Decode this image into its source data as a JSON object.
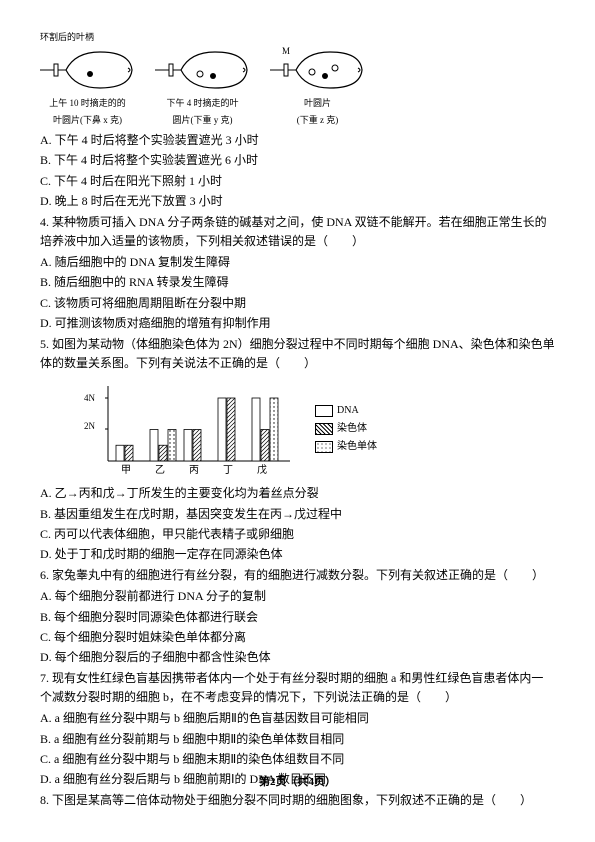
{
  "fish": {
    "topLabel": "环割后的叶柄",
    "items": [
      {
        "label1": "上午 10 时摘走的的",
        "label2": "叶圆片(下鼻 x 克)"
      },
      {
        "label1": "下午 4 时摘走的叶",
        "label2": "圆片(下重 y 克)"
      },
      {
        "label1": "叶圆片",
        "label2": "(下重 z 克)"
      }
    ]
  },
  "q3options": {
    "A": "A. 下午 4 时后将整个实验装置遮光 3 小时",
    "B": "B. 下午 4 时后将整个实验装置遮光 6 小时",
    "C": "C. 下午 4 时后在阳光下照射 1 小时",
    "D": "D. 晚上 8 时后在无光下放置 3 小时"
  },
  "q4": {
    "stem": "4. 某种物质可插入 DNA 分子两条链的碱基对之间，使 DNA 双链不能解开。若在细胞正常生长的培养液中加入适量的该物质，下列相关叙述错误的是（　　）",
    "A": "A. 随后细胞中的 DNA 复制发生障碍",
    "B": "B. 随后细胞中的 RNA 转录发生障碍",
    "C": "C. 该物质可将细胞周期阻断在分裂中期",
    "D": "D. 可推测该物质对癌细胞的增殖有抑制作用"
  },
  "q5": {
    "stem": "5. 如图为某动物（体细胞染色体为 2N）细胞分裂过程中不同时期每个细胞 DNA、染色体和染色单体的数量关系图。下列有关说法不正确的是（　　）",
    "A": "A. 乙→丙和戊→丁所发生的主要变化均为着丝点分裂",
    "B": "B. 基因重组发生在戊时期，基因突变发生在丙→戊过程中",
    "C": "C. 丙可以代表体细胞，甲只能代表精子或卵细胞",
    "D": "D. 处于丁和戊时期的细胞一定存在同源染色体"
  },
  "chart": {
    "yMax": 4,
    "yTicks": [
      "4N",
      "2N"
    ],
    "categories": [
      "甲",
      "乙",
      "丙",
      "丁",
      "戊"
    ],
    "series": [
      {
        "name": "DNA",
        "fill": "none",
        "pattern": "none"
      },
      {
        "name": "染色体",
        "fill": "hatch",
        "pattern": "diag"
      },
      {
        "name": "染色单体",
        "fill": "dots",
        "pattern": "dots"
      }
    ],
    "data": {
      "甲": {
        "DNA": 1,
        "染色体": 1,
        "染色单体": 0
      },
      "乙": {
        "DNA": 2,
        "染色体": 1,
        "染色单体": 2
      },
      "丙": {
        "DNA": 2,
        "染色体": 2,
        "染色单体": 0
      },
      "丁": {
        "DNA": 4,
        "染色体": 4,
        "染色单体": 0
      },
      "戊": {
        "DNA": 4,
        "染色体": 2,
        "染色单体": 4
      }
    },
    "colors": {
      "axis": "#000000",
      "bars": "#333333",
      "bg": "#ffffff"
    }
  },
  "q6": {
    "stem": "6. 家兔睾丸中有的细胞进行有丝分裂，有的细胞进行减数分裂。下列有关叙述正确的是（　　）",
    "A": "A. 每个细胞分裂前都进行 DNA 分子的复制",
    "B": "B. 每个细胞分裂时同源染色体都进行联会",
    "C": "C. 每个细胞分裂时姐妹染色单体都分离",
    "D": "D. 每个细胞分裂后的子细胞中都含性染色体"
  },
  "q7": {
    "stem": "7. 现有女性红绿色盲基因携带者体内一个处于有丝分裂时期的细胞 a 和男性红绿色盲患者体内一个减数分裂时期的细胞 b，在不考虑变异的情况下，下列说法正确的是（　　）",
    "A": "A. a 细胞有丝分裂中期与 b 细胞后期Ⅱ的色盲基因数目可能相同",
    "B": "B. a 细胞有丝分裂前期与 b 细胞中期Ⅱ的染色单体数目相同",
    "C": "C. a 细胞有丝分裂中期与 b 细胞末期Ⅱ的染色体组数目不同",
    "D": "D. a 细胞有丝分裂后期与 b 细胞前期Ⅰ的 DNA 数目不同"
  },
  "q8": {
    "stem": "8. 下图是某高等二倍体动物处于细胞分裂不同时期的细胞图象，下列叙述不正确的是（　　）"
  },
  "footer": "第2页（共4页）"
}
